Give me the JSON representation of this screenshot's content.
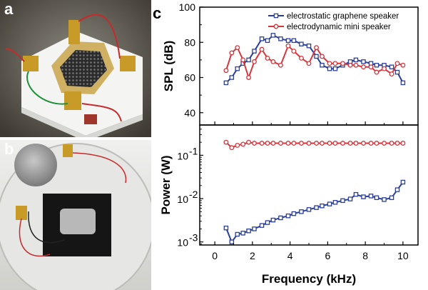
{
  "panels": {
    "a": {
      "label": "a"
    },
    "b": {
      "label": "b"
    },
    "c": {
      "label": "c"
    }
  },
  "colors": {
    "graphene": "#2a3f9a",
    "mini": "#d7353c"
  },
  "chart_data": [
    {
      "type": "line",
      "title": "",
      "xlabel": "Frequency (kHz)",
      "ylabel": "SPL (dB)",
      "xlim": [
        -0.8,
        10.8
      ],
      "ylim": [
        33,
        100
      ],
      "xticks": [
        0,
        2,
        4,
        6,
        8,
        10
      ],
      "yticks": [
        40,
        60,
        80,
        100
      ],
      "grid": false,
      "legend": "top-right",
      "series": [
        {
          "name": "electrostatic graphene speaker",
          "color": "#2a3f9a",
          "marker": "square",
          "x": [
            0.6,
            0.9,
            1.2,
            1.5,
            1.8,
            2.1,
            2.5,
            2.8,
            3.1,
            3.5,
            3.9,
            4.2,
            4.6,
            5.0,
            5.4,
            5.7,
            6.1,
            6.4,
            6.8,
            7.2,
            7.5,
            7.9,
            8.3,
            8.6,
            9.0,
            9.4,
            9.7,
            10.0
          ],
          "y": [
            57,
            60,
            65,
            68,
            70,
            75,
            82,
            81,
            84,
            82,
            81,
            81,
            79,
            78,
            72,
            67,
            65,
            65,
            67,
            69,
            70,
            69,
            68,
            67,
            67,
            66,
            63,
            57
          ]
        },
        {
          "name": "electrodynamic mini speaker",
          "color": "#d7353c",
          "marker": "circle",
          "x": [
            0.6,
            0.9,
            1.2,
            1.5,
            1.8,
            2.1,
            2.5,
            2.8,
            3.1,
            3.5,
            3.9,
            4.2,
            4.6,
            5.0,
            5.4,
            5.7,
            6.1,
            6.4,
            6.8,
            7.2,
            7.5,
            7.9,
            8.3,
            8.6,
            9.0,
            9.4,
            9.7,
            10.0
          ],
          "y": [
            64,
            74,
            77,
            70,
            60,
            69,
            76,
            71,
            69,
            67,
            78,
            75,
            71,
            68,
            77,
            72,
            68,
            68,
            68,
            67,
            67,
            66,
            66,
            63,
            65,
            62,
            68,
            67
          ]
        }
      ]
    },
    {
      "type": "line",
      "title": "",
      "xlabel": "Frequency (kHz)",
      "ylabel": "Power (W)",
      "yscale": "log",
      "xlim": [
        -0.8,
        10.8
      ],
      "ylim": [
        0.00085,
        0.5
      ],
      "xticks": [
        0,
        2,
        4,
        6,
        8,
        10
      ],
      "yticks": [
        0.001,
        0.01,
        0.1
      ],
      "ytick_labels": [
        {
          "base": "10",
          "exp": "-3"
        },
        {
          "base": "10",
          "exp": "-2"
        },
        {
          "base": "10",
          "exp": "-1"
        }
      ],
      "grid": false,
      "series": [
        {
          "name": "electrostatic graphene speaker",
          "color": "#2a3f9a",
          "marker": "square",
          "x": [
            0.6,
            0.9,
            1.2,
            1.5,
            1.8,
            2.1,
            2.5,
            2.8,
            3.1,
            3.5,
            3.9,
            4.2,
            4.6,
            5.0,
            5.4,
            5.7,
            6.1,
            6.4,
            6.8,
            7.2,
            7.5,
            7.9,
            8.3,
            8.6,
            9.0,
            9.4,
            9.7,
            10.0
          ],
          "y": [
            0.0021,
            0.001,
            0.0015,
            0.0016,
            0.0018,
            0.002,
            0.0024,
            0.0028,
            0.0032,
            0.0036,
            0.004,
            0.0045,
            0.005,
            0.0056,
            0.0062,
            0.0068,
            0.0075,
            0.0082,
            0.009,
            0.0098,
            0.0125,
            0.011,
            0.0115,
            0.0105,
            0.0095,
            0.0105,
            0.016,
            0.024
          ]
        },
        {
          "name": "electrodynamic mini speaker",
          "color": "#d7353c",
          "marker": "circle",
          "x": [
            0.6,
            0.9,
            1.2,
            1.5,
            1.8,
            2.1,
            2.5,
            2.8,
            3.1,
            3.5,
            3.9,
            4.2,
            4.6,
            5.0,
            5.4,
            5.7,
            6.1,
            6.4,
            6.8,
            7.2,
            7.5,
            7.9,
            8.3,
            8.6,
            9.0,
            9.4,
            9.7,
            10.0
          ],
          "y": [
            0.2,
            0.15,
            0.17,
            0.18,
            0.2,
            0.19,
            0.19,
            0.19,
            0.19,
            0.19,
            0.19,
            0.19,
            0.19,
            0.19,
            0.19,
            0.19,
            0.19,
            0.19,
            0.19,
            0.19,
            0.19,
            0.19,
            0.19,
            0.19,
            0.19,
            0.19,
            0.19,
            0.19
          ]
        }
      ]
    }
  ]
}
